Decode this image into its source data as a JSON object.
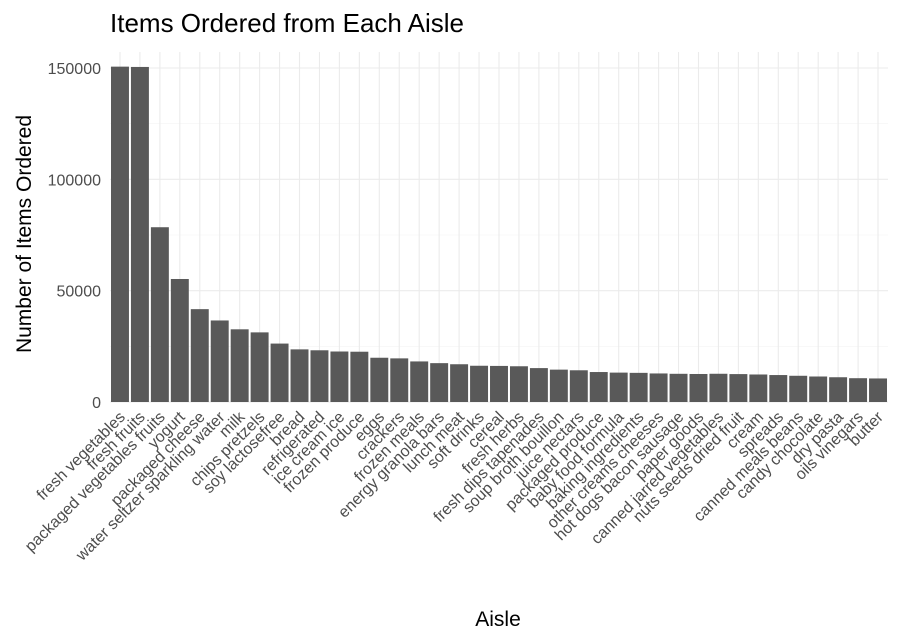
{
  "chart_data": {
    "type": "bar",
    "title": "Items Ordered from Each Aisle",
    "xlabel": "Aisle",
    "ylabel": "Number of Items Ordered",
    "ylim": [
      0,
      150000
    ],
    "yticks": [
      0,
      50000,
      100000,
      150000
    ],
    "ytick_labels": [
      "0",
      "50000",
      "100000",
      "150000"
    ],
    "grid": true,
    "categories": [
      "fresh vegetables",
      "fresh fruits",
      "packaged vegetables fruits",
      "yogurt",
      "packaged cheese",
      "water seltzer sparkling water",
      "milk",
      "chips pretzels",
      "soy lactosefree",
      "bread",
      "refrigerated",
      "ice cream ice",
      "frozen produce",
      "eggs",
      "crackers",
      "frozen meals",
      "energy granola bars",
      "lunch meat",
      "soft drinks",
      "cereal",
      "fresh herbs",
      "fresh dips tapenades",
      "soup broth bouillon",
      "juice nectars",
      "packaged produce",
      "baby food formula",
      "baking ingredients",
      "other creams cheeses",
      "hot dogs bacon sausage",
      "paper goods",
      "canned jarred vegetables",
      "nuts seeds dried fruit",
      "cream",
      "spreads",
      "canned meals beans",
      "candy chocolate",
      "dry pasta",
      "oils vinegars",
      "butter"
    ],
    "values": [
      150609,
      150473,
      78493,
      55240,
      41699,
      36617,
      32644,
      31269,
      26240,
      23635,
      23228,
      22676,
      22583,
      19875,
      19592,
      18221,
      17449,
      16957,
      16279,
      16201,
      16052,
      15225,
      14536,
      14248,
      13460,
      13198,
      13088,
      12820,
      12665,
      12580,
      12679,
      12532,
      12356,
      12102,
      11774,
      11453,
      11118,
      10689,
      10575
    ]
  }
}
